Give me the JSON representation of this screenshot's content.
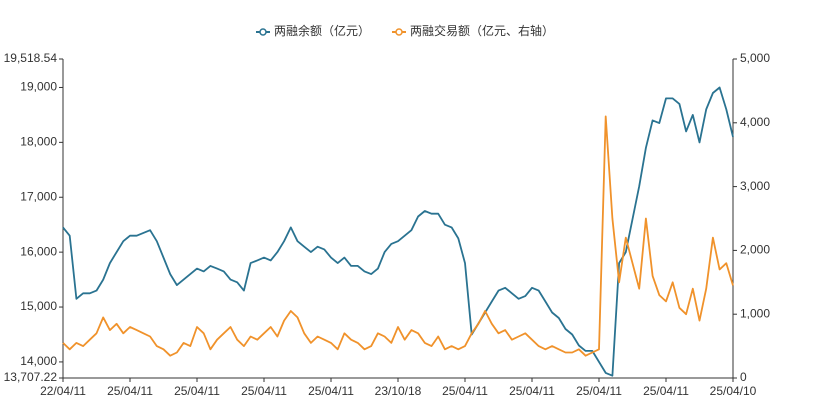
{
  "chart_data": {
    "type": "line",
    "categories": [
      "22/04/11",
      null,
      null,
      null,
      null,
      null,
      null,
      null,
      null,
      null,
      "25/04/11",
      null,
      null,
      null,
      null,
      null,
      null,
      null,
      null,
      null,
      "25/04/11",
      null,
      null,
      null,
      null,
      null,
      null,
      null,
      null,
      null,
      "25/04/11",
      null,
      null,
      null,
      null,
      null,
      null,
      null,
      null,
      null,
      "25/04/11",
      null,
      null,
      null,
      null,
      null,
      null,
      null,
      null,
      null,
      "23/10/18",
      null,
      null,
      null,
      null,
      null,
      null,
      null,
      null,
      null,
      "25/04/11",
      null,
      null,
      null,
      null,
      null,
      null,
      null,
      null,
      null,
      "25/04/11",
      null,
      null,
      null,
      null,
      null,
      null,
      null,
      null,
      null,
      "25/04/11",
      null,
      null,
      null,
      null,
      null,
      null,
      null,
      null,
      null,
      "25/04/11",
      null,
      null,
      null,
      null,
      null,
      null,
      null,
      null,
      null,
      "25/04/10"
    ],
    "series": [
      {
        "name": "两融余额（亿元）",
        "color": "#2a7391",
        "values": [
          16450,
          16300,
          15150,
          15250,
          15250,
          15300,
          15500,
          15800,
          16000,
          16200,
          16300,
          16300,
          16350,
          16400,
          16200,
          15900,
          15600,
          15400,
          15500,
          15600,
          15700,
          15650,
          15750,
          15700,
          15650,
          15500,
          15450,
          15300,
          15800,
          15850,
          15900,
          15850,
          16000,
          16200,
          16450,
          16200,
          16100,
          16000,
          16100,
          16050,
          15900,
          15800,
          15900,
          15750,
          15750,
          15650,
          15600,
          15700,
          16000,
          16150,
          16200,
          16300,
          16400,
          16650,
          16750,
          16700,
          16700,
          16500,
          16450,
          16250,
          15800,
          14500,
          14700,
          14900,
          15100,
          15300,
          15350,
          15250,
          15150,
          15200,
          15350,
          15300,
          15100,
          14900,
          14800,
          14600,
          14500,
          14300,
          14200,
          14200,
          14000,
          13800,
          13750,
          15800,
          16000,
          16600,
          17200,
          17900,
          18400,
          18350,
          18800,
          18800,
          18700,
          18200,
          18500,
          18000,
          18600,
          18900,
          19000,
          18600,
          18100
        ]
      },
      {
        "name": "两融交易额（亿元、右轴）",
        "color": "#f0922b",
        "axis": "y2",
        "values": [
          550,
          450,
          550,
          500,
          600,
          700,
          950,
          750,
          850,
          700,
          800,
          750,
          700,
          650,
          500,
          450,
          350,
          400,
          550,
          500,
          800,
          700,
          450,
          600,
          700,
          800,
          600,
          500,
          650,
          600,
          700,
          800,
          650,
          900,
          1050,
          950,
          700,
          550,
          650,
          600,
          550,
          450,
          700,
          600,
          550,
          450,
          500,
          700,
          650,
          550,
          800,
          600,
          750,
          700,
          550,
          500,
          650,
          450,
          500,
          450,
          500,
          700,
          850,
          1050,
          850,
          700,
          750,
          600,
          650,
          700,
          600,
          500,
          450,
          500,
          450,
          400,
          400,
          450,
          350,
          400,
          450,
          4100,
          2500,
          1500,
          2200,
          1800,
          1400,
          2500,
          1600,
          1300,
          1200,
          1500,
          1100,
          1000,
          1400,
          900,
          1400,
          2200,
          1700,
          1800,
          1450
        ]
      }
    ],
    "ylim": [
      13707.22,
      19518.54
    ],
    "yticks": [
      {
        "value": 13707.22,
        "label": "13,707.22"
      },
      {
        "value": 14000,
        "label": "14,000"
      },
      {
        "value": 15000,
        "label": "15,000"
      },
      {
        "value": 16000,
        "label": "16,000"
      },
      {
        "value": 17000,
        "label": "17,000"
      },
      {
        "value": 18000,
        "label": "18,000"
      },
      {
        "value": 19000,
        "label": "19,000"
      },
      {
        "value": 19518.54,
        "label": "19,518.54"
      }
    ],
    "y2lim": [
      0,
      5000
    ],
    "y2ticks": [
      0,
      {
        "value": 1000,
        "label": "1,000"
      },
      {
        "value": 2000,
        "label": "2,000"
      },
      {
        "value": 3000,
        "label": "3,000"
      },
      {
        "value": 4000,
        "label": "4,000"
      },
      {
        "value": 5000,
        "label": "5,000"
      }
    ],
    "legend": "top"
  }
}
